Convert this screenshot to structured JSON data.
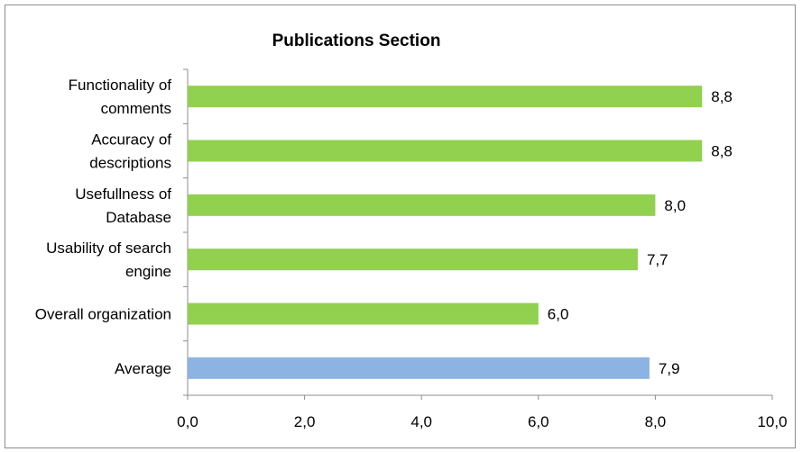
{
  "chart_data": {
    "type": "bar",
    "orientation": "horizontal",
    "title": "Publications Section",
    "categories": [
      [
        "Functionality of",
        "comments"
      ],
      [
        "Accuracy of",
        "descriptions"
      ],
      [
        "Usefullness of",
        "Database"
      ],
      [
        "Usability of search",
        "engine"
      ],
      [
        "Overall organization"
      ],
      [
        "Average"
      ]
    ],
    "values": [
      8.8,
      8.8,
      8.0,
      7.7,
      6.0,
      7.9
    ],
    "value_labels": [
      "8,8",
      "8,8",
      "8,0",
      "7,7",
      "6,0",
      "7,9"
    ],
    "bar_colors": [
      "#92d050",
      "#92d050",
      "#92d050",
      "#92d050",
      "#92d050",
      "#8db3e2"
    ],
    "xlim": [
      0,
      10
    ],
    "xticks": [
      0,
      2,
      4,
      6,
      8,
      10
    ],
    "xtick_labels": [
      "0,0",
      "2,0",
      "4,0",
      "6,0",
      "8,0",
      "10,0"
    ],
    "xlabel": "",
    "ylabel": "",
    "grid": false,
    "legend": "none"
  }
}
